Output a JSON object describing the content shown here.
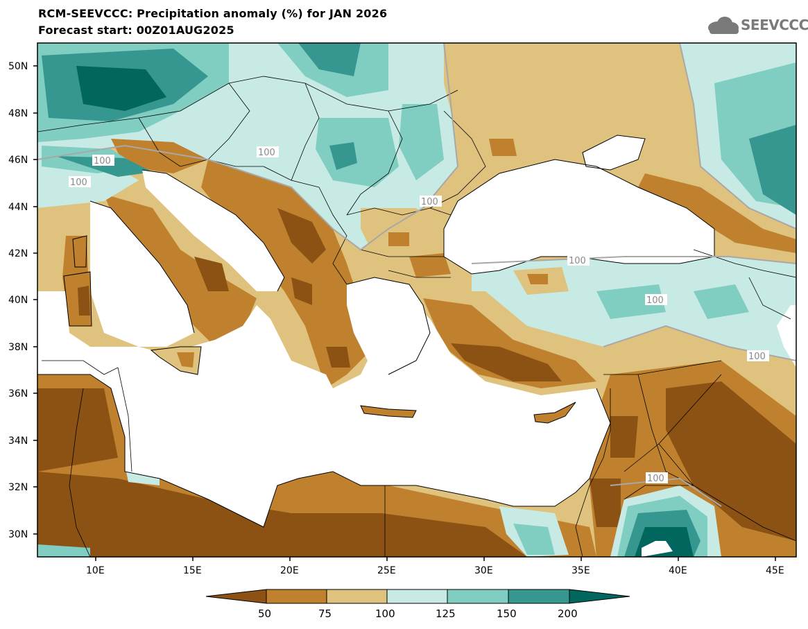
{
  "header": {
    "title": "RCM-SEEVCCC: Precipitation anomaly (%) for JAN 2026",
    "subtitle": "Forecast start: 00Z01AUG2025"
  },
  "logo": {
    "text": "SEEVCCC",
    "icon": "cloud-logo-icon"
  },
  "map": {
    "lon_range": [
      7,
      46
    ],
    "lat_range": [
      29,
      51
    ],
    "x_ticks": [
      "10E",
      "15E",
      "20E",
      "25E",
      "30E",
      "35E",
      "40E",
      "45E"
    ],
    "y_ticks": [
      "50N",
      "48N",
      "46N",
      "44N",
      "42N",
      "40N",
      "38N",
      "36N",
      "34N",
      "32N",
      "30N"
    ],
    "contour_labels": [
      "100",
      "100",
      "100",
      "100",
      "100",
      "100",
      "100",
      "100"
    ]
  },
  "colorbar": {
    "levels": [
      "50",
      "75",
      "100",
      "125",
      "150",
      "200"
    ],
    "colors": [
      "#8c5213",
      "#bf812d",
      "#dfc27d",
      "#c7eae5",
      "#80cdc1",
      "#35978f",
      "#01665e"
    ]
  }
}
